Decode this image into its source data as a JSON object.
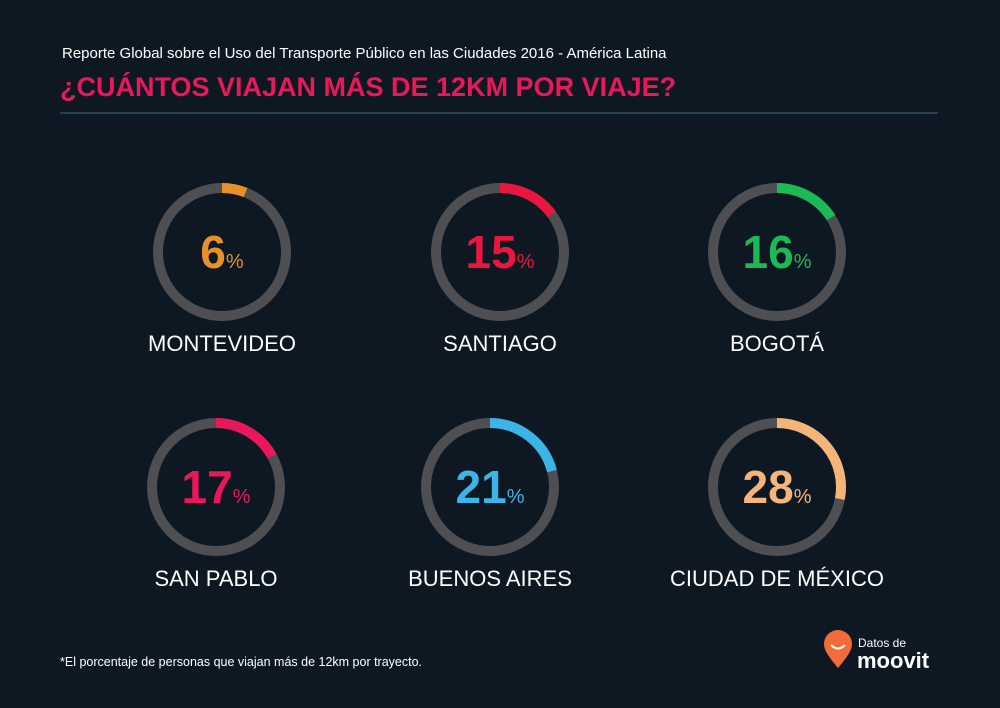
{
  "chart_data": {
    "type": "gauge",
    "subtitle": "Reporte Global sobre el Uso del Transporte Público en las Ciudades 2016 - América Latina",
    "title": "¿CUÁNTOS VIAJAN MÁS DE 12KM POR VIAJE?",
    "categories": [
      "MONTEVIDEO",
      "SANTIAGO",
      "BOGOTÁ",
      "SAN PABLO",
      "BUENOS AIRES",
      "CIUDAD DE MÉXICO"
    ],
    "values": [
      6,
      15,
      16,
      17,
      21,
      28
    ],
    "unit": "%",
    "colors": [
      "#e8902a",
      "#e8173f",
      "#1db954",
      "#e8185a",
      "#3bb4e8",
      "#f5b47a"
    ],
    "ylim": [
      0,
      100
    ],
    "track_color": "#4d4f52"
  },
  "note": "*El porcentaje de personas que viajan más de 12km por trayecto.",
  "brand": {
    "label": "Datos de",
    "name": "moovit"
  }
}
